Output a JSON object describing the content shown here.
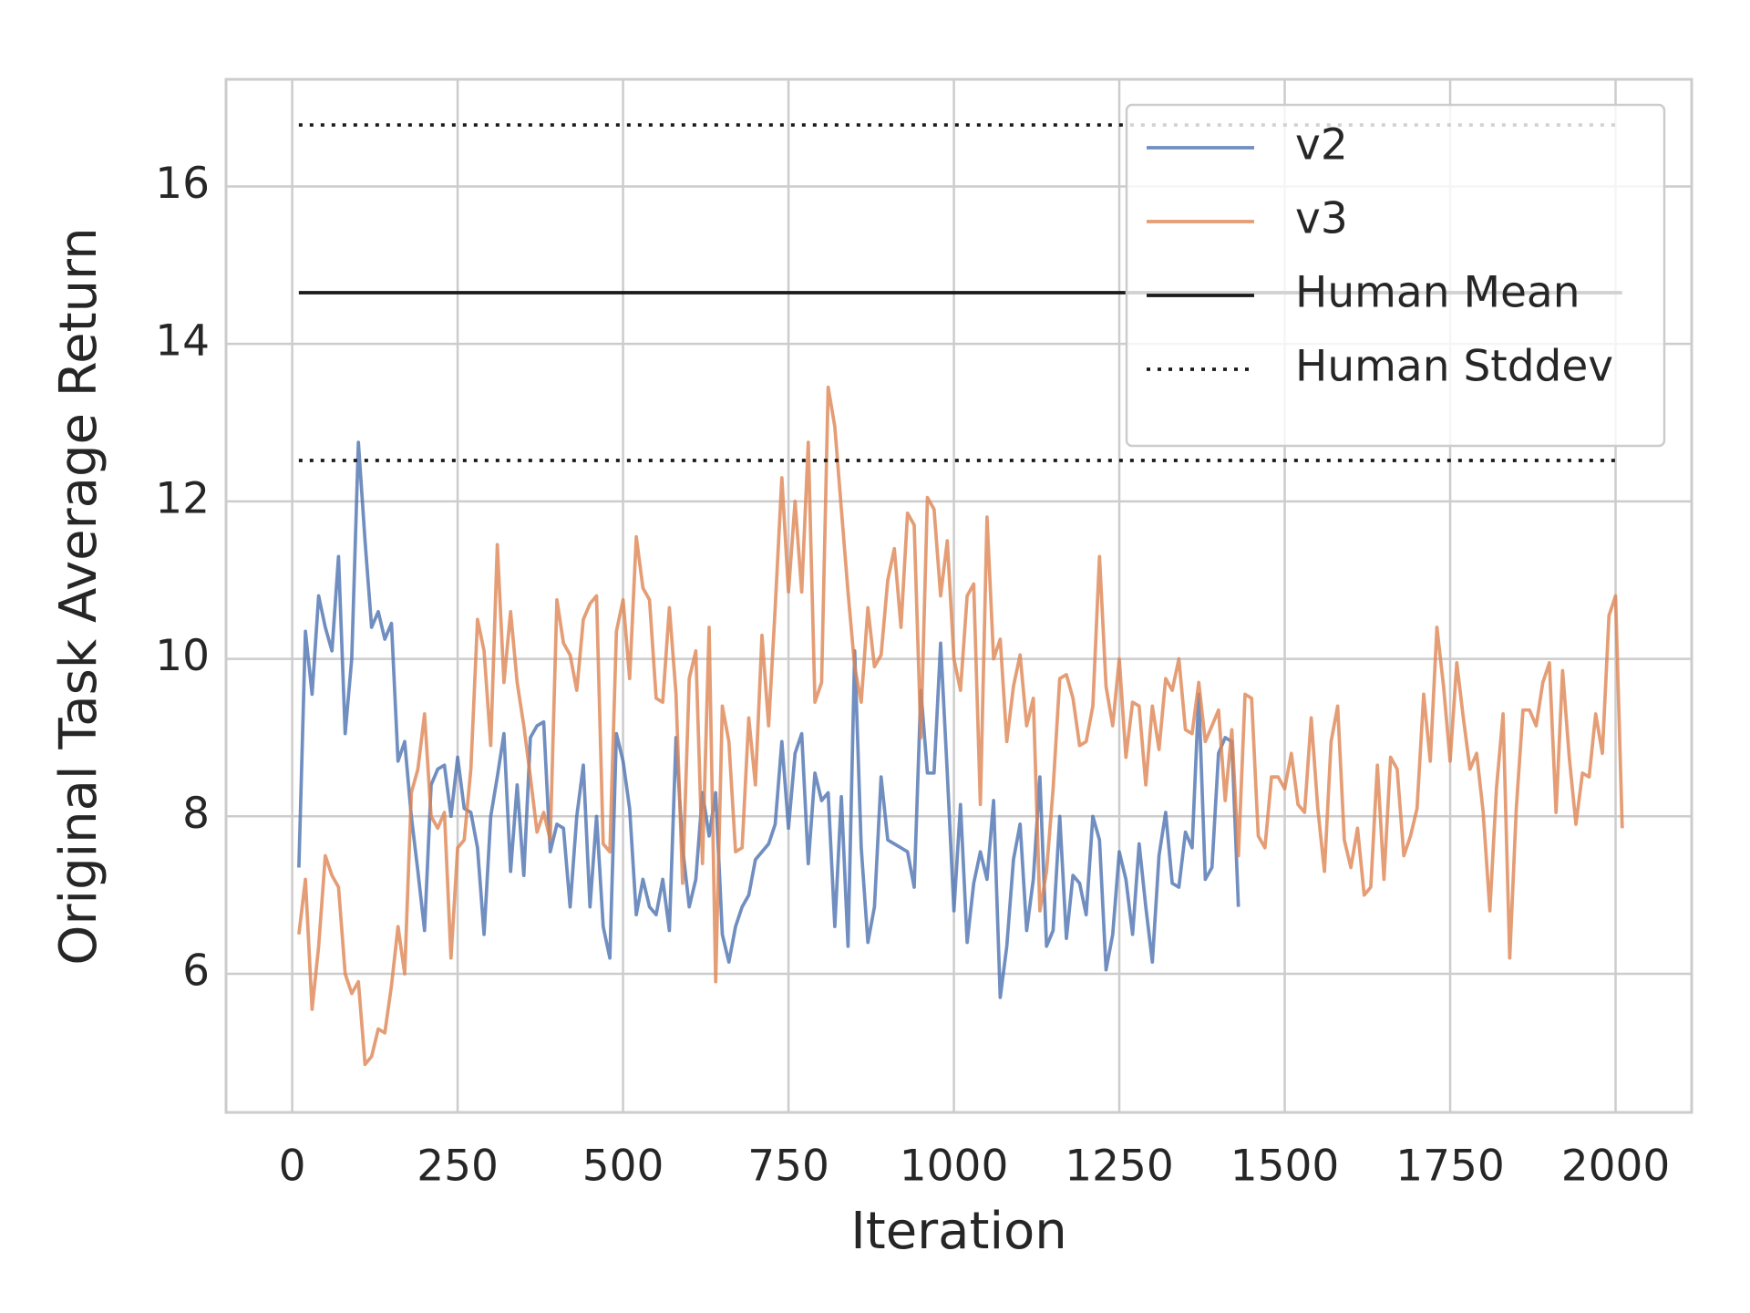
{
  "chart_data": {
    "type": "line",
    "x_label": "Iteration",
    "y_label": "Original Task Average Return",
    "xlim": [
      -100,
      2115
    ],
    "ylim": [
      4.24,
      17.36
    ],
    "xticks": [
      0,
      250,
      500,
      750,
      1000,
      1250,
      1500,
      1750,
      2000
    ],
    "yticks": [
      6,
      8,
      10,
      12,
      14,
      16
    ],
    "grid": true,
    "legend": "upper right",
    "series": [
      {
        "name": "v2",
        "color": "#4c72b0",
        "x": [
          10,
          20,
          30,
          40,
          50,
          60,
          70,
          80,
          90,
          100,
          110,
          120,
          130,
          140,
          150,
          160,
          170,
          180,
          190,
          200,
          210,
          220,
          230,
          240,
          250,
          260,
          270,
          280,
          290,
          300,
          310,
          320,
          330,
          340,
          350,
          360,
          370,
          380,
          390,
          400,
          410,
          420,
          430,
          440,
          450,
          460,
          470,
          480,
          490,
          500,
          510,
          520,
          530,
          540,
          550,
          560,
          570,
          580,
          590,
          600,
          610,
          620,
          630,
          640,
          650,
          660,
          670,
          680,
          690,
          700,
          710,
          720,
          730,
          740,
          750,
          760,
          770,
          780,
          790,
          800,
          810,
          820,
          830,
          840,
          850,
          860,
          870,
          880,
          890,
          900,
          910,
          920,
          930,
          940,
          950,
          960,
          970,
          980,
          990,
          1000,
          1010,
          1020,
          1030,
          1040,
          1050,
          1060,
          1070,
          1080,
          1090,
          1100,
          1110,
          1120,
          1130,
          1140,
          1150,
          1160,
          1170,
          1180,
          1190,
          1200,
          1210,
          1220,
          1230,
          1240,
          1250,
          1260,
          1270,
          1280,
          1290,
          1300,
          1310,
          1320,
          1330,
          1340,
          1350,
          1360,
          1370,
          1380,
          1390,
          1400,
          1410,
          1420,
          1430
        ],
        "values": [
          7.35,
          10.35,
          9.55,
          10.8,
          10.4,
          10.1,
          11.3,
          9.05,
          10.0,
          12.75,
          11.5,
          10.4,
          10.6,
          10.25,
          10.45,
          8.7,
          8.95,
          8.0,
          7.3,
          6.55,
          8.4,
          8.6,
          8.65,
          8.0,
          8.75,
          8.1,
          8.05,
          7.6,
          6.5,
          8.0,
          8.5,
          9.05,
          7.3,
          8.4,
          7.25,
          9.0,
          9.15,
          9.2,
          7.55,
          7.9,
          7.85,
          6.85,
          8.0,
          8.65,
          6.85,
          8.0,
          6.6,
          6.2,
          9.05,
          8.7,
          8.1,
          6.75,
          7.2,
          6.85,
          6.75,
          7.2,
          6.55,
          9.0,
          7.6,
          6.85,
          7.2,
          8.3,
          7.75,
          8.3,
          6.5,
          6.15,
          6.6,
          6.85,
          7.0,
          7.45,
          7.55,
          7.65,
          7.9,
          8.95,
          7.85,
          8.8,
          9.05,
          7.4,
          8.55,
          8.2,
          8.3,
          6.6,
          8.25,
          6.35,
          10.1,
          7.6,
          6.4,
          6.85,
          8.5,
          7.7,
          7.65,
          7.6,
          7.55,
          7.1,
          9.6,
          8.55,
          8.55,
          10.2,
          8.55,
          6.8,
          8.15,
          6.4,
          7.15,
          7.55,
          7.2,
          8.2,
          5.7,
          6.35,
          7.45,
          7.9,
          6.55,
          7.2,
          8.5,
          6.35,
          6.55,
          8.0,
          6.45,
          7.25,
          7.15,
          6.75,
          8.0,
          7.7,
          6.05,
          6.5,
          7.55,
          7.2,
          6.5,
          7.65,
          6.85,
          6.15,
          7.5,
          8.05,
          7.15,
          7.1,
          7.8,
          7.6,
          9.55,
          7.2,
          7.35,
          8.8,
          9.0,
          8.95,
          6.85
        ]
      },
      {
        "name": "v3",
        "color": "#dd8452",
        "x": [
          10,
          20,
          30,
          40,
          50,
          60,
          70,
          80,
          90,
          100,
          110,
          120,
          130,
          140,
          150,
          160,
          170,
          180,
          190,
          200,
          210,
          220,
          230,
          240,
          250,
          260,
          270,
          280,
          290,
          300,
          310,
          320,
          330,
          340,
          350,
          360,
          370,
          380,
          390,
          400,
          410,
          420,
          430,
          440,
          450,
          460,
          470,
          480,
          490,
          500,
          510,
          520,
          530,
          540,
          550,
          560,
          570,
          580,
          590,
          600,
          610,
          620,
          630,
          640,
          650,
          660,
          670,
          680,
          690,
          700,
          710,
          720,
          730,
          740,
          750,
          760,
          770,
          780,
          790,
          800,
          810,
          820,
          830,
          840,
          850,
          860,
          870,
          880,
          890,
          900,
          910,
          920,
          930,
          940,
          950,
          960,
          970,
          980,
          990,
          1000,
          1010,
          1020,
          1030,
          1040,
          1050,
          1060,
          1070,
          1080,
          1090,
          1100,
          1110,
          1120,
          1130,
          1140,
          1150,
          1160,
          1170,
          1180,
          1190,
          1200,
          1210,
          1220,
          1230,
          1240,
          1250,
          1260,
          1270,
          1280,
          1290,
          1300,
          1310,
          1320,
          1330,
          1340,
          1350,
          1360,
          1370,
          1380,
          1390,
          1400,
          1410,
          1420,
          1430,
          1440,
          1450,
          1460,
          1470,
          1480,
          1490,
          1500,
          1510,
          1520,
          1530,
          1540,
          1550,
          1560,
          1570,
          1580,
          1590,
          1600,
          1610,
          1620,
          1630,
          1640,
          1650,
          1660,
          1670,
          1680,
          1690,
          1700,
          1710,
          1720,
          1730,
          1740,
          1750,
          1760,
          1770,
          1780,
          1790,
          1800,
          1810,
          1820,
          1830,
          1840,
          1850,
          1860,
          1870,
          1880,
          1890,
          1900,
          1910,
          1920,
          1930,
          1940,
          1950,
          1960,
          1970,
          1980,
          1990,
          2000,
          2010
        ],
        "values": [
          6.5,
          7.2,
          5.55,
          6.35,
          7.5,
          7.25,
          7.1,
          6.0,
          5.75,
          5.9,
          4.85,
          4.95,
          5.3,
          5.25,
          5.85,
          6.6,
          6.0,
          8.3,
          8.6,
          9.3,
          8.0,
          7.85,
          8.05,
          6.2,
          7.6,
          7.7,
          8.6,
          10.5,
          10.1,
          8.9,
          11.45,
          9.7,
          10.6,
          9.7,
          9.15,
          8.5,
          7.8,
          8.05,
          7.7,
          10.75,
          10.2,
          10.05,
          9.6,
          10.5,
          10.7,
          10.8,
          7.65,
          7.55,
          10.35,
          10.75,
          9.75,
          11.55,
          10.9,
          10.75,
          9.5,
          9.45,
          10.65,
          9.55,
          7.15,
          9.75,
          10.1,
          7.4,
          10.4,
          5.9,
          9.4,
          8.95,
          7.55,
          7.6,
          9.25,
          8.4,
          10.3,
          9.15,
          10.65,
          12.3,
          10.85,
          12.0,
          10.85,
          12.75,
          9.45,
          9.7,
          13.45,
          12.95,
          11.9,
          10.85,
          9.9,
          9.45,
          10.65,
          9.9,
          10.05,
          11.0,
          11.4,
          10.4,
          11.85,
          11.7,
          9.0,
          12.05,
          11.9,
          10.8,
          11.5,
          10.0,
          9.6,
          10.8,
          10.95,
          8.15,
          11.8,
          10.0,
          10.25,
          8.95,
          9.65,
          10.05,
          9.15,
          9.5,
          6.8,
          7.3,
          8.35,
          9.75,
          9.8,
          9.5,
          8.9,
          8.95,
          9.4,
          11.3,
          9.65,
          9.15,
          10.0,
          8.75,
          9.45,
          9.4,
          8.4,
          9.4,
          8.85,
          9.75,
          9.6,
          10.0,
          9.1,
          9.05,
          9.7,
          8.95,
          9.15,
          9.35,
          8.2,
          9.1,
          7.5,
          9.55,
          9.5,
          7.75,
          7.6,
          8.5,
          8.5,
          8.35,
          8.8,
          8.15,
          8.05,
          9.25,
          8.1,
          7.3,
          8.95,
          9.4,
          7.7,
          7.35,
          7.85,
          7.0,
          7.1,
          8.65,
          7.2,
          8.75,
          8.6,
          7.5,
          7.75,
          8.1,
          9.55,
          8.7,
          10.4,
          9.65,
          8.7,
          9.95,
          9.25,
          8.6,
          8.8,
          8.05,
          6.8,
          8.35,
          9.3,
          6.2,
          8.1,
          9.35,
          9.35,
          9.15,
          9.7,
          9.95,
          8.05,
          9.85,
          8.75,
          7.9,
          8.55,
          8.5,
          9.3,
          8.8,
          10.55,
          10.8,
          7.85
        ]
      },
      {
        "name": "Human Mean",
        "color": "#1a1a1a",
        "kind": "hline",
        "dash": "solid",
        "span": [
          10,
          2010
        ],
        "values": [
          14.65
        ]
      },
      {
        "name": "Human Stddev",
        "color": "#1a1a1a",
        "kind": "hline",
        "dash": "dotted",
        "span": [
          10,
          2010
        ],
        "values": [
          16.78,
          12.52
        ]
      }
    ]
  }
}
